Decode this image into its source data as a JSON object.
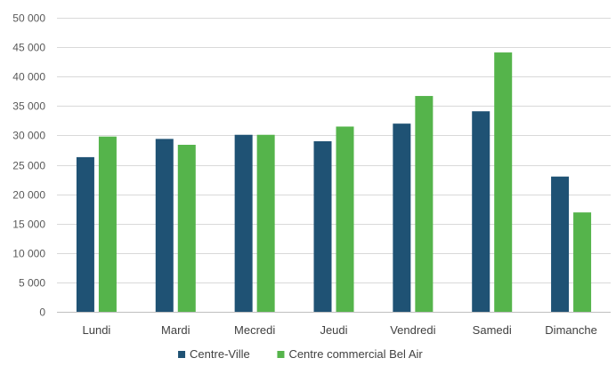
{
  "chart_data": {
    "type": "bar",
    "title": "",
    "xlabel": "",
    "ylabel": "",
    "categories": [
      "Lundi",
      "Mardi",
      "Mecredi",
      "Jeudi",
      "Vendredi",
      "Samedi",
      "Dimanche"
    ],
    "series": [
      {
        "name": "Centre-Ville",
        "color": "#1f5274",
        "values": [
          26300,
          29400,
          30100,
          29000,
          32000,
          34100,
          23000
        ]
      },
      {
        "name": "Centre commercial Bel Air",
        "color": "#55b44b",
        "values": [
          29800,
          28400,
          30100,
          31500,
          36700,
          44100,
          16900
        ]
      }
    ],
    "ylim": [
      0,
      50000
    ],
    "yticks": [
      0,
      5000,
      10000,
      15000,
      20000,
      25000,
      30000,
      35000,
      40000,
      45000,
      50000
    ],
    "ytick_labels": [
      "0",
      "5 000",
      "10 000",
      "15 000",
      "20 000",
      "25 000",
      "30 000",
      "35 000",
      "40 000",
      "45 000",
      "50 000"
    ],
    "grid": true,
    "legend_position": "bottom"
  }
}
